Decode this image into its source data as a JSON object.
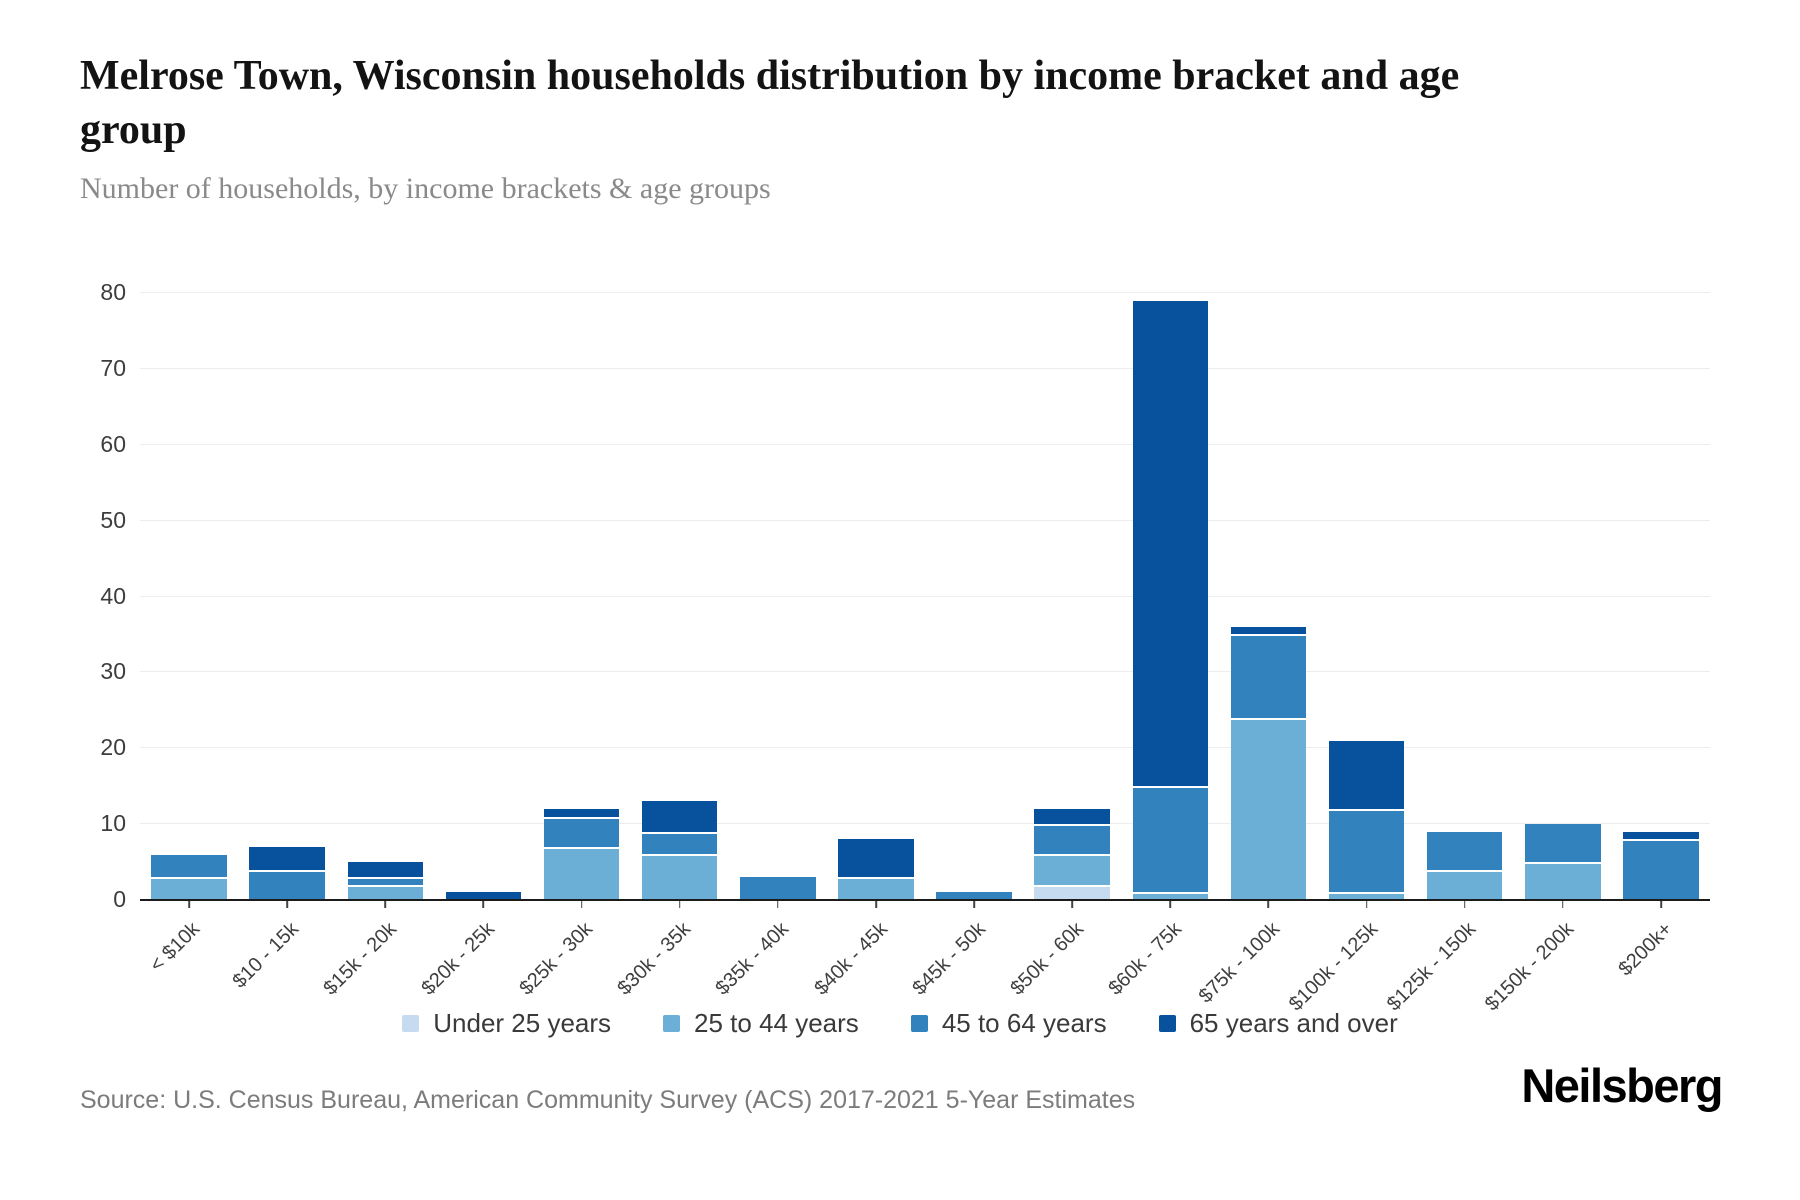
{
  "header": {
    "title": "Melrose Town, Wisconsin households distribution by income bracket and age group",
    "subtitle": "Number of households, by income brackets & age groups"
  },
  "chart_data": {
    "type": "bar",
    "stacked": true,
    "categories": [
      "< $10k",
      "$10 - 15k",
      "$15k - 20k",
      "$20k - 25k",
      "$25k - 30k",
      "$30k - 35k",
      "$35k - 40k",
      "$40k - 45k",
      "$45k - 50k",
      "$50k - 60k",
      "$60k - 75k",
      "$75k - 100k",
      "$100k - 125k",
      "$125k - 150k",
      "$150k - 200k",
      "$200k+"
    ],
    "series": [
      {
        "name": "Under 25 years",
        "color": "#c6dbef",
        "values": [
          0,
          0,
          0,
          0,
          0,
          0,
          0,
          0,
          0,
          2,
          0,
          0,
          0,
          0,
          0,
          0
        ]
      },
      {
        "name": "25 to 44 years",
        "color": "#6baed6",
        "values": [
          3,
          0,
          2,
          0,
          7,
          6,
          0,
          3,
          0,
          4,
          1,
          24,
          1,
          4,
          5,
          0
        ]
      },
      {
        "name": "45 to 64 years",
        "color": "#3182bd",
        "values": [
          3,
          4,
          1,
          0,
          4,
          3,
          3,
          0,
          1,
          4,
          14,
          11,
          11,
          5,
          5,
          8
        ]
      },
      {
        "name": "65 years and over",
        "color": "#08519c",
        "values": [
          0,
          3,
          2,
          1,
          1,
          4,
          0,
          5,
          0,
          2,
          64,
          1,
          9,
          0,
          0,
          1
        ]
      }
    ],
    "totals": [
      6,
      7,
      5,
      1,
      12,
      13,
      3,
      8,
      1,
      12,
      79,
      36,
      21,
      9,
      10,
      9
    ],
    "ylim": [
      0,
      80
    ],
    "yticks": [
      0,
      10,
      20,
      30,
      40,
      50,
      60,
      70,
      80
    ],
    "grid": true,
    "legend_position": "bottom",
    "axis_color": "#1b1b1b",
    "gridline_color": "#ededed"
  },
  "footer": {
    "source": "Source: U.S. Census Bureau, American Community Survey (ACS) 2017-2021 5-Year Estimates",
    "brand": "Neilsberg"
  }
}
